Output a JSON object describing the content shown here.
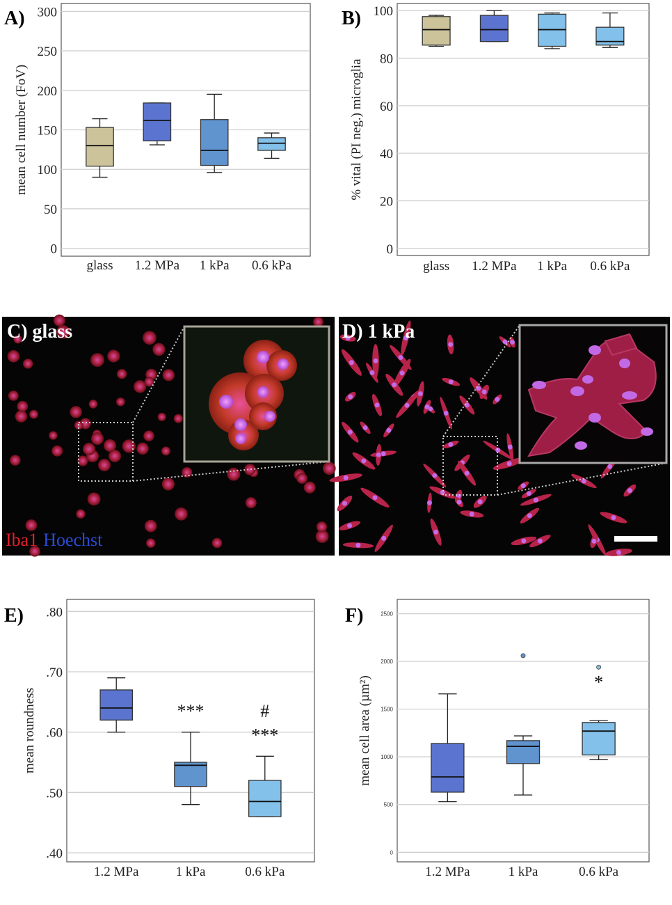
{
  "colors": {
    "glass": "#cdc39b",
    "mpa12": "#5b74cf",
    "kpa1": "#5f94cf",
    "kpa06": "#83c1ea",
    "iba1": "#e0202a",
    "hoechst": "#2a4bd8"
  },
  "chart_data": [
    {
      "id": "A",
      "panel_label": "A)",
      "type": "box",
      "title": "",
      "ylabel": "mean cell number (FoV)",
      "xlabel": "",
      "ylim": [
        -10,
        310
      ],
      "yticks": [
        0,
        50,
        100,
        150,
        200,
        250,
        300
      ],
      "ytick_labels": [
        "0",
        "50",
        "100",
        "150",
        "200",
        "250",
        "300"
      ],
      "categories": [
        "glass",
        "1.2 MPa",
        "1 kPa",
        "0.6 kPa"
      ],
      "boxes": [
        {
          "min": 90,
          "q1": 104,
          "median": 130,
          "q3": 153,
          "max": 164,
          "color": "#cdc39b"
        },
        {
          "min": 131,
          "q1": 136,
          "median": 162,
          "q3": 184,
          "max": 184,
          "color": "#5b74cf"
        },
        {
          "min": 96,
          "q1": 105,
          "median": 124,
          "q3": 163,
          "max": 195,
          "color": "#5f94cf"
        },
        {
          "min": 114,
          "q1": 124,
          "median": 133,
          "q3": 140,
          "max": 146,
          "color": "#83c1ea"
        }
      ]
    },
    {
      "id": "B",
      "panel_label": "B)",
      "type": "box",
      "title": "",
      "ylabel": "% vital (PI neg.) microglia",
      "xlabel": "",
      "ylim": [
        -3,
        103
      ],
      "yticks": [
        0,
        20,
        40,
        60,
        80,
        100
      ],
      "ytick_labels": [
        "0",
        "20",
        "40",
        "60",
        "80",
        "100"
      ],
      "categories": [
        "glass",
        "1.2 MPa",
        "1 kPa",
        "0.6 kPa"
      ],
      "boxes": [
        {
          "min": 85,
          "q1": 85.5,
          "median": 92,
          "q3": 97.5,
          "max": 98,
          "color": "#cdc39b"
        },
        {
          "min": 87,
          "q1": 87,
          "median": 92,
          "q3": 98,
          "max": 100,
          "color": "#5b74cf"
        },
        {
          "min": 84,
          "q1": 85,
          "median": 92,
          "q3": 98.5,
          "max": 99,
          "color": "#83c1ea"
        },
        {
          "min": 84.5,
          "q1": 85.5,
          "median": 87,
          "q3": 93,
          "max": 99,
          "color": "#83c1ea"
        }
      ]
    },
    {
      "id": "E",
      "panel_label": "E)",
      "type": "box",
      "title": "",
      "ylabel": "mean roundness",
      "xlabel": "",
      "ylim": [
        0.385,
        0.82
      ],
      "yticks": [
        0.4,
        0.5,
        0.6,
        0.7,
        0.8
      ],
      "ytick_labels": [
        ".40",
        ".50",
        ".60",
        ".70",
        ".80"
      ],
      "categories": [
        "1.2 MPa",
        "1 kPa",
        "0.6 kPa"
      ],
      "boxes": [
        {
          "min": 0.6,
          "q1": 0.62,
          "median": 0.64,
          "q3": 0.67,
          "max": 0.69,
          "color": "#5b74cf"
        },
        {
          "min": 0.48,
          "q1": 0.51,
          "median": 0.545,
          "q3": 0.55,
          "max": 0.6,
          "color": "#5f94cf"
        },
        {
          "min": 0.46,
          "q1": 0.46,
          "median": 0.485,
          "q3": 0.52,
          "max": 0.56,
          "color": "#83c1ea"
        }
      ],
      "annotations": [
        {
          "category": "1 kPa",
          "text": "***",
          "y": 0.625
        },
        {
          "category": "0.6 kPa",
          "text": "#",
          "y": 0.625
        },
        {
          "category": "0.6 kPa",
          "text": "***",
          "y": 0.585
        }
      ]
    },
    {
      "id": "F",
      "panel_label": "F)",
      "type": "box",
      "title": "",
      "ylabel": "mean cell area (µm²)",
      "xlabel": "",
      "ylim": [
        -100,
        2650
      ],
      "yticks": [
        0,
        500,
        1000,
        1500,
        2000,
        2500
      ],
      "ytick_labels": [
        "0",
        "500",
        "1000",
        "1500",
        "2000",
        "2500"
      ],
      "categories": [
        "1.2 MPa",
        "1 kPa",
        "0.6 kPa"
      ],
      "boxes": [
        {
          "min": 530,
          "q1": 630,
          "median": 790,
          "q3": 1140,
          "max": 1660,
          "color": "#5b74cf",
          "outliers": []
        },
        {
          "min": 600,
          "q1": 930,
          "median": 1110,
          "q3": 1170,
          "max": 1220,
          "color": "#5f94cf",
          "outliers": [
            2060
          ]
        },
        {
          "min": 970,
          "q1": 1020,
          "median": 1270,
          "q3": 1360,
          "max": 1380,
          "color": "#83c1ea",
          "outliers": [
            1940
          ]
        }
      ],
      "annotations": [
        {
          "category": "0.6 kPa",
          "text": "*",
          "y": 1720
        }
      ]
    }
  ],
  "micrographs": {
    "C": {
      "label": "C) glass",
      "legend_iba1": "Iba1",
      "legend_hoechst": "Hoechst"
    },
    "D": {
      "label": "D) 1 kPa"
    }
  }
}
